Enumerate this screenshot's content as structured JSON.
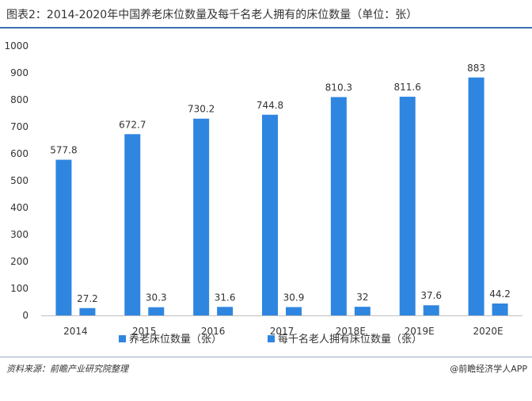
{
  "title": "图表2：2014-2020年中国养老床位数量及每千名老人拥有的床位数量（单位：张）",
  "source": "资料来源：前瞻产业研究院整理",
  "brand": "@前瞻经济学人APP",
  "chart_data": {
    "type": "bar",
    "categories": [
      "2014",
      "2015",
      "2016",
      "2017",
      "2018E",
      "2019E",
      "2020E"
    ],
    "series": [
      {
        "name": "养老床位数量（张）",
        "color": "#2f86e0",
        "values": [
          577.8,
          672.7,
          730.2,
          744.8,
          810.3,
          811.6,
          883
        ],
        "labels": [
          "577.8",
          "672.7",
          "730.2",
          "744.8",
          "810.3",
          "811.6",
          "883"
        ]
      },
      {
        "name": "每千名老人拥有床位数量（张）",
        "color": "#2f86e0",
        "values": [
          27.2,
          30.3,
          31.6,
          30.9,
          32,
          37.6,
          44.2
        ],
        "labels": [
          "27.2",
          "30.3",
          "31.6",
          "30.9",
          "32",
          "37.6",
          "44.2"
        ]
      }
    ],
    "ylim": [
      0,
      1000
    ],
    "yticks": [
      "0",
      "100",
      "200",
      "300",
      "400",
      "500",
      "600",
      "700",
      "800",
      "900",
      "1000"
    ],
    "grid": false,
    "legend_position": "bottom"
  }
}
